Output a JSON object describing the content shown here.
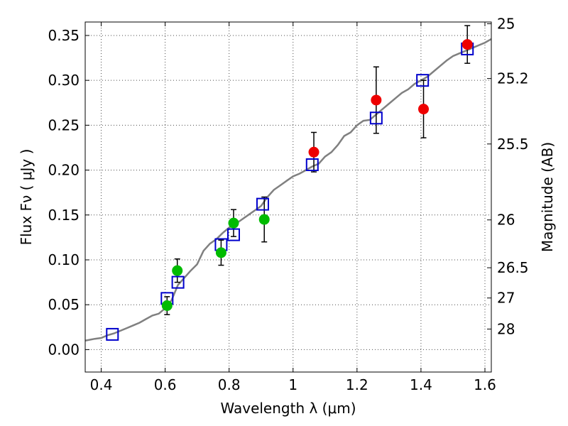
{
  "chart_data": {
    "type": "scatter",
    "xlabel": "Wavelength  λ (μm)",
    "ylabel": "Flux  Fν  ( μJy )",
    "y2label": "Magnitude (AB)",
    "xlim": [
      0.35,
      1.62
    ],
    "ylim": [
      -0.025,
      0.365
    ],
    "grid": true,
    "x_ticks": [
      0.4,
      0.6,
      0.8,
      1.0,
      1.2,
      1.4,
      1.6
    ],
    "x_tick_labels": [
      "0.4",
      "0.6",
      "0.8",
      "1",
      "1.2",
      "1.4",
      "1.6"
    ],
    "y_ticks": [
      0.0,
      0.05,
      0.1,
      0.15,
      0.2,
      0.25,
      0.3,
      0.35
    ],
    "y_tick_labels": [
      "0.00",
      "0.05",
      "0.10",
      "0.15",
      "0.20",
      "0.25",
      "0.30",
      "0.35"
    ],
    "mag_ticks": [
      {
        "label": "25",
        "flux": 0.3631
      },
      {
        "label": "25.2",
        "flux": 0.302
      },
      {
        "label": "25.5",
        "flux": 0.2291
      },
      {
        "label": "26",
        "flux": 0.1445
      },
      {
        "label": "26.5",
        "flux": 0.0912
      },
      {
        "label": "27",
        "flux": 0.0575
      },
      {
        "label": "28",
        "flux": 0.0229
      }
    ],
    "series": [
      {
        "kind": "model-spectrum",
        "color": "#808080",
        "x": [
          0.35,
          0.38,
          0.4,
          0.42,
          0.44,
          0.46,
          0.48,
          0.5,
          0.52,
          0.54,
          0.56,
          0.58,
          0.6,
          0.62,
          0.64,
          0.66,
          0.68,
          0.7,
          0.72,
          0.74,
          0.76,
          0.78,
          0.8,
          0.82,
          0.84,
          0.86,
          0.88,
          0.9,
          0.92,
          0.94,
          0.96,
          0.98,
          1.0,
          1.02,
          1.04,
          1.06,
          1.08,
          1.1,
          1.12,
          1.14,
          1.16,
          1.18,
          1.2,
          1.22,
          1.24,
          1.26,
          1.28,
          1.3,
          1.32,
          1.34,
          1.36,
          1.38,
          1.4,
          1.42,
          1.44,
          1.46,
          1.48,
          1.5,
          1.52,
          1.54,
          1.56,
          1.58,
          1.6,
          1.62
        ],
        "y": [
          0.01,
          0.012,
          0.013,
          0.016,
          0.018,
          0.021,
          0.024,
          0.027,
          0.03,
          0.034,
          0.038,
          0.04,
          0.046,
          0.055,
          0.072,
          0.08,
          0.088,
          0.095,
          0.11,
          0.118,
          0.123,
          0.13,
          0.136,
          0.14,
          0.145,
          0.15,
          0.155,
          0.16,
          0.17,
          0.178,
          0.183,
          0.188,
          0.193,
          0.196,
          0.2,
          0.204,
          0.207,
          0.215,
          0.22,
          0.228,
          0.238,
          0.242,
          0.25,
          0.255,
          0.256,
          0.262,
          0.268,
          0.274,
          0.28,
          0.286,
          0.29,
          0.296,
          0.3,
          0.304,
          0.31,
          0.316,
          0.322,
          0.327,
          0.33,
          0.333,
          0.336,
          0.339,
          0.342,
          0.346
        ]
      },
      {
        "kind": "model-photometry",
        "color": "#0000cc",
        "x": [
          0.435,
          0.606,
          0.64,
          0.775,
          0.814,
          0.905,
          1.06,
          1.26,
          1.405,
          1.545
        ],
        "y": [
          0.017,
          0.057,
          0.075,
          0.117,
          0.128,
          0.162,
          0.206,
          0.258,
          0.3,
          0.335
        ]
      },
      {
        "kind": "observed-optical",
        "color": "#00bb00",
        "x": [
          0.606,
          0.638,
          0.775,
          0.814,
          0.91
        ],
        "y": [
          0.049,
          0.088,
          0.108,
          0.141,
          0.145
        ],
        "err": [
          0.01,
          0.013,
          0.014,
          0.015,
          0.025
        ]
      },
      {
        "kind": "observed-nir",
        "color": "#ee0000",
        "x": [
          1.065,
          1.26,
          1.408,
          1.545
        ],
        "y": [
          0.22,
          0.278,
          0.268,
          0.34
        ],
        "err": [
          0.022,
          0.037,
          0.032,
          0.021
        ]
      }
    ]
  }
}
